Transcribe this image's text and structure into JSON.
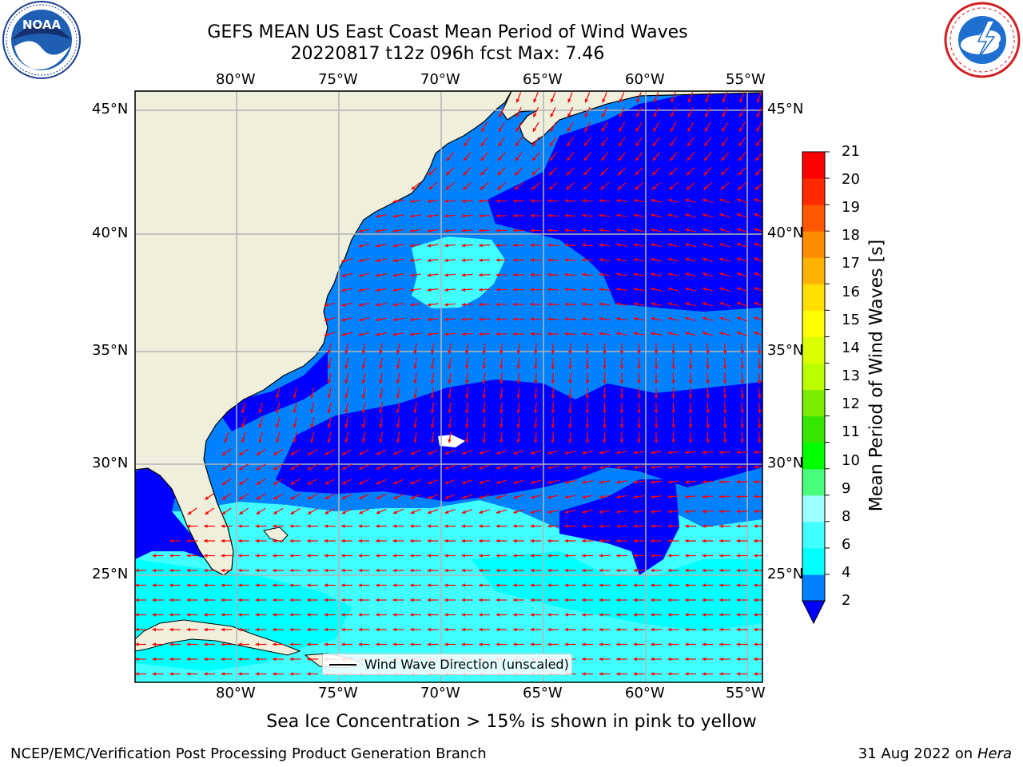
{
  "title": "GEFS MEAN US East Coast Mean Period of Wind Waves",
  "subtitle": "20220817 t12z 096h fcst   Max: 7.46",
  "map": {
    "lon_range": [
      -85,
      -54.5
    ],
    "lat_range": [
      20.5,
      45.8
    ],
    "lon_ticks": [
      "80°W",
      "75°W",
      "70°W",
      "65°W",
      "60°W",
      "55°W"
    ],
    "lat_ticks": [
      "45°N",
      "40°N",
      "35°N",
      "30°N",
      "25°N"
    ],
    "grid": true,
    "land_color": "#efefdc",
    "ocean_colors": {
      "2-4": "#0082ff",
      "lt2": "#0000ff",
      "4-6": "#00ffff",
      "6-8": "#41ffff",
      "8-9": "#9effff"
    }
  },
  "colorbar": {
    "label": "Mean Period of Wind Waves [s]",
    "ticks": [
      "21",
      "20",
      "19",
      "18",
      "17",
      "16",
      "15",
      "14",
      "13",
      "12",
      "11",
      "10",
      "9",
      "8",
      "6",
      "4",
      "2"
    ],
    "colors_bottom_to_top": [
      "#0082ff",
      "#00ffff",
      "#41ffff",
      "#9effff",
      "#47ff7a",
      "#00ff00",
      "#37e600",
      "#7aec00",
      "#b9ff00",
      "#dbff00",
      "#ffff00",
      "#ffe000",
      "#ffb300",
      "#ff8c00",
      "#ff5800",
      "#ff2a00",
      "#ff0000"
    ],
    "extend_color": "#0000ff"
  },
  "legend": {
    "label": "Wind Wave Direction (unscaled)"
  },
  "ice_note": "Sea Ice Concentration > 15% is shown in pink to yellow",
  "footer_left": "NCEP/EMC/Verification Post Processing Product Generation Branch",
  "footer_date": "31 Aug 2022 on",
  "footer_host": "Hera",
  "logos": {
    "left": "noaa-logo",
    "right": "national-weather-service-logo"
  }
}
